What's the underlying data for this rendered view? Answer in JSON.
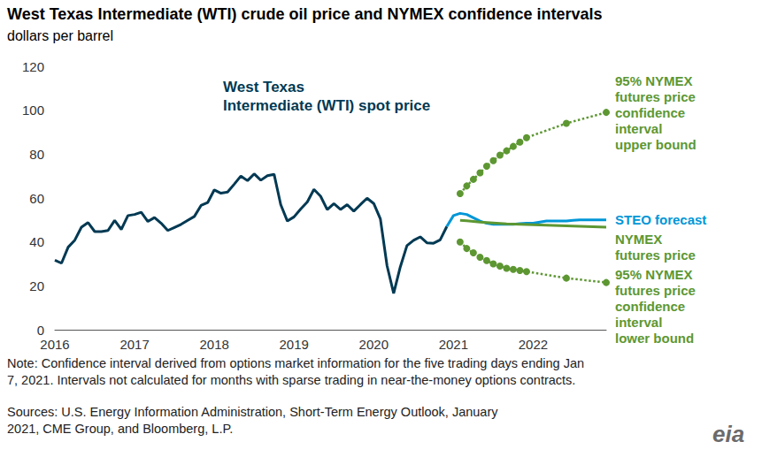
{
  "chart_data": {
    "type": "line",
    "title": "West Texas Intermediate (WTI) crude oil price and NYMEX confidence intervals",
    "subtitle": "dollars per barrel",
    "categories": [
      "2016",
      null,
      null,
      null,
      null,
      null,
      null,
      null,
      null,
      null,
      null,
      null,
      "2017",
      null,
      null,
      null,
      null,
      null,
      null,
      null,
      null,
      null,
      null,
      null,
      "2018",
      null,
      null,
      null,
      null,
      null,
      null,
      null,
      null,
      null,
      null,
      null,
      "2019",
      null,
      null,
      null,
      null,
      null,
      null,
      null,
      null,
      null,
      null,
      null,
      "2020",
      null,
      null,
      null,
      null,
      null,
      null,
      null,
      null,
      null,
      null,
      null,
      "2021",
      null,
      null,
      null,
      null,
      null,
      null,
      null,
      null,
      null,
      null,
      null,
      "2022",
      null,
      null,
      null,
      null,
      null,
      null,
      null,
      null,
      null,
      null,
      null
    ],
    "series": [
      {
        "name": "West Texas\nIntermediate (WTI) spot price",
        "color": "#003953",
        "values": [
          31.7,
          30.3,
          37.6,
          40.8,
          46.7,
          48.8,
          44.7,
          44.7,
          45.2,
          49.8,
          45.7,
          52.0,
          52.5,
          53.5,
          49.3,
          51.1,
          48.5,
          45.2,
          46.6,
          48.0,
          49.8,
          51.6,
          56.6,
          57.9,
          63.7,
          62.2,
          62.7,
          66.3,
          70.0,
          67.9,
          71.0,
          68.1,
          70.2,
          70.8,
          57.0,
          49.5,
          51.4,
          55.0,
          58.2,
          63.9,
          60.8,
          54.7,
          57.4,
          54.8,
          57.0,
          54.0,
          57.0,
          59.9,
          57.5,
          50.5,
          29.2,
          16.6,
          28.6,
          38.3,
          40.7,
          42.3,
          39.6,
          39.4,
          40.9,
          47.0,
          null,
          null,
          null,
          null,
          null,
          null,
          null,
          null,
          null,
          null,
          null,
          null,
          null,
          null,
          null,
          null,
          null,
          null,
          null,
          null,
          null,
          null,
          null,
          null
        ]
      },
      {
        "name": "STEO forecast",
        "color": "#0096d7",
        "values": [
          null,
          null,
          null,
          null,
          null,
          null,
          null,
          null,
          null,
          null,
          null,
          null,
          null,
          null,
          null,
          null,
          null,
          null,
          null,
          null,
          null,
          null,
          null,
          null,
          null,
          null,
          null,
          null,
          null,
          null,
          null,
          null,
          null,
          null,
          null,
          null,
          null,
          null,
          null,
          null,
          null,
          null,
          null,
          null,
          null,
          null,
          null,
          null,
          null,
          null,
          null,
          null,
          null,
          null,
          null,
          null,
          null,
          null,
          null,
          47.0,
          52.0,
          53.0,
          52.5,
          51.0,
          49.5,
          48.5,
          48.0,
          48.0,
          48.0,
          48.0,
          48.3,
          48.5,
          48.5,
          49.0,
          49.5,
          49.5,
          49.5,
          49.5,
          49.8,
          50.0,
          50.0,
          50.0,
          50.0,
          50.0
        ]
      },
      {
        "name": "NYMEX\nfutures price",
        "color": "#5d9732",
        "values": [
          null,
          null,
          null,
          null,
          null,
          null,
          null,
          null,
          null,
          null,
          null,
          null,
          null,
          null,
          null,
          null,
          null,
          null,
          null,
          null,
          null,
          null,
          null,
          null,
          null,
          null,
          null,
          null,
          null,
          null,
          null,
          null,
          null,
          null,
          null,
          null,
          null,
          null,
          null,
          null,
          null,
          null,
          null,
          null,
          null,
          null,
          null,
          null,
          null,
          null,
          null,
          null,
          null,
          null,
          null,
          null,
          null,
          null,
          null,
          null,
          null,
          49.8,
          49.6,
          49.3,
          49.0,
          48.8,
          48.6,
          48.4,
          48.2,
          48.1,
          48.0,
          47.9,
          47.8,
          47.7,
          47.6,
          47.5,
          47.4,
          47.3,
          47.2,
          47.1,
          47.0,
          46.9,
          46.8,
          46.7
        ]
      },
      {
        "name": "95% NYMEX\nfutures price\nconfidence\ninterval\nupper bound",
        "color": "#5d9732",
        "marker": "circle",
        "line_style": "dotted",
        "values": [
          null,
          null,
          null,
          null,
          null,
          null,
          null,
          null,
          null,
          null,
          null,
          null,
          null,
          null,
          null,
          null,
          null,
          null,
          null,
          null,
          null,
          null,
          null,
          null,
          null,
          null,
          null,
          null,
          null,
          null,
          null,
          null,
          null,
          null,
          null,
          null,
          null,
          null,
          null,
          null,
          null,
          null,
          null,
          null,
          null,
          null,
          null,
          null,
          null,
          null,
          null,
          null,
          null,
          null,
          null,
          null,
          null,
          null,
          null,
          null,
          null,
          62.0,
          65.5,
          68.5,
          71.5,
          74.5,
          77.0,
          79.5,
          81.5,
          83.5,
          85.5,
          87.5,
          null,
          null,
          null,
          null,
          null,
          94.0,
          null,
          null,
          null,
          null,
          null,
          99.0
        ]
      },
      {
        "name": "95% NYMEX\nfutures price\nconfidence\ninterval\nlower bound",
        "color": "#5d9732",
        "marker": "circle",
        "line_style": "dotted",
        "values": [
          null,
          null,
          null,
          null,
          null,
          null,
          null,
          null,
          null,
          null,
          null,
          null,
          null,
          null,
          null,
          null,
          null,
          null,
          null,
          null,
          null,
          null,
          null,
          null,
          null,
          null,
          null,
          null,
          null,
          null,
          null,
          null,
          null,
          null,
          null,
          null,
          null,
          null,
          null,
          null,
          null,
          null,
          null,
          null,
          null,
          null,
          null,
          null,
          null,
          null,
          null,
          null,
          null,
          null,
          null,
          null,
          null,
          null,
          null,
          null,
          null,
          40.0,
          37.0,
          35.0,
          33.0,
          31.5,
          30.0,
          29.0,
          28.0,
          27.5,
          27.0,
          26.5,
          null,
          null,
          null,
          null,
          null,
          23.5,
          null,
          null,
          null,
          null,
          null,
          21.5
        ]
      }
    ],
    "ylim": [
      0,
      120
    ],
    "yticks": [
      0,
      20,
      40,
      60,
      80,
      100,
      120
    ],
    "grid": false,
    "note": "Note: Confidence interval derived from options market information for the five trading days ending Jan\n7, 2021. Intervals not calculated for months with sparse trading in near-the-money options contracts.",
    "source": "Sources: U.S. Energy Information Administration, Short-Term Energy Outlook, January\n2021, CME Group, and Bloomberg, L.P.",
    "logo": "eia"
  }
}
